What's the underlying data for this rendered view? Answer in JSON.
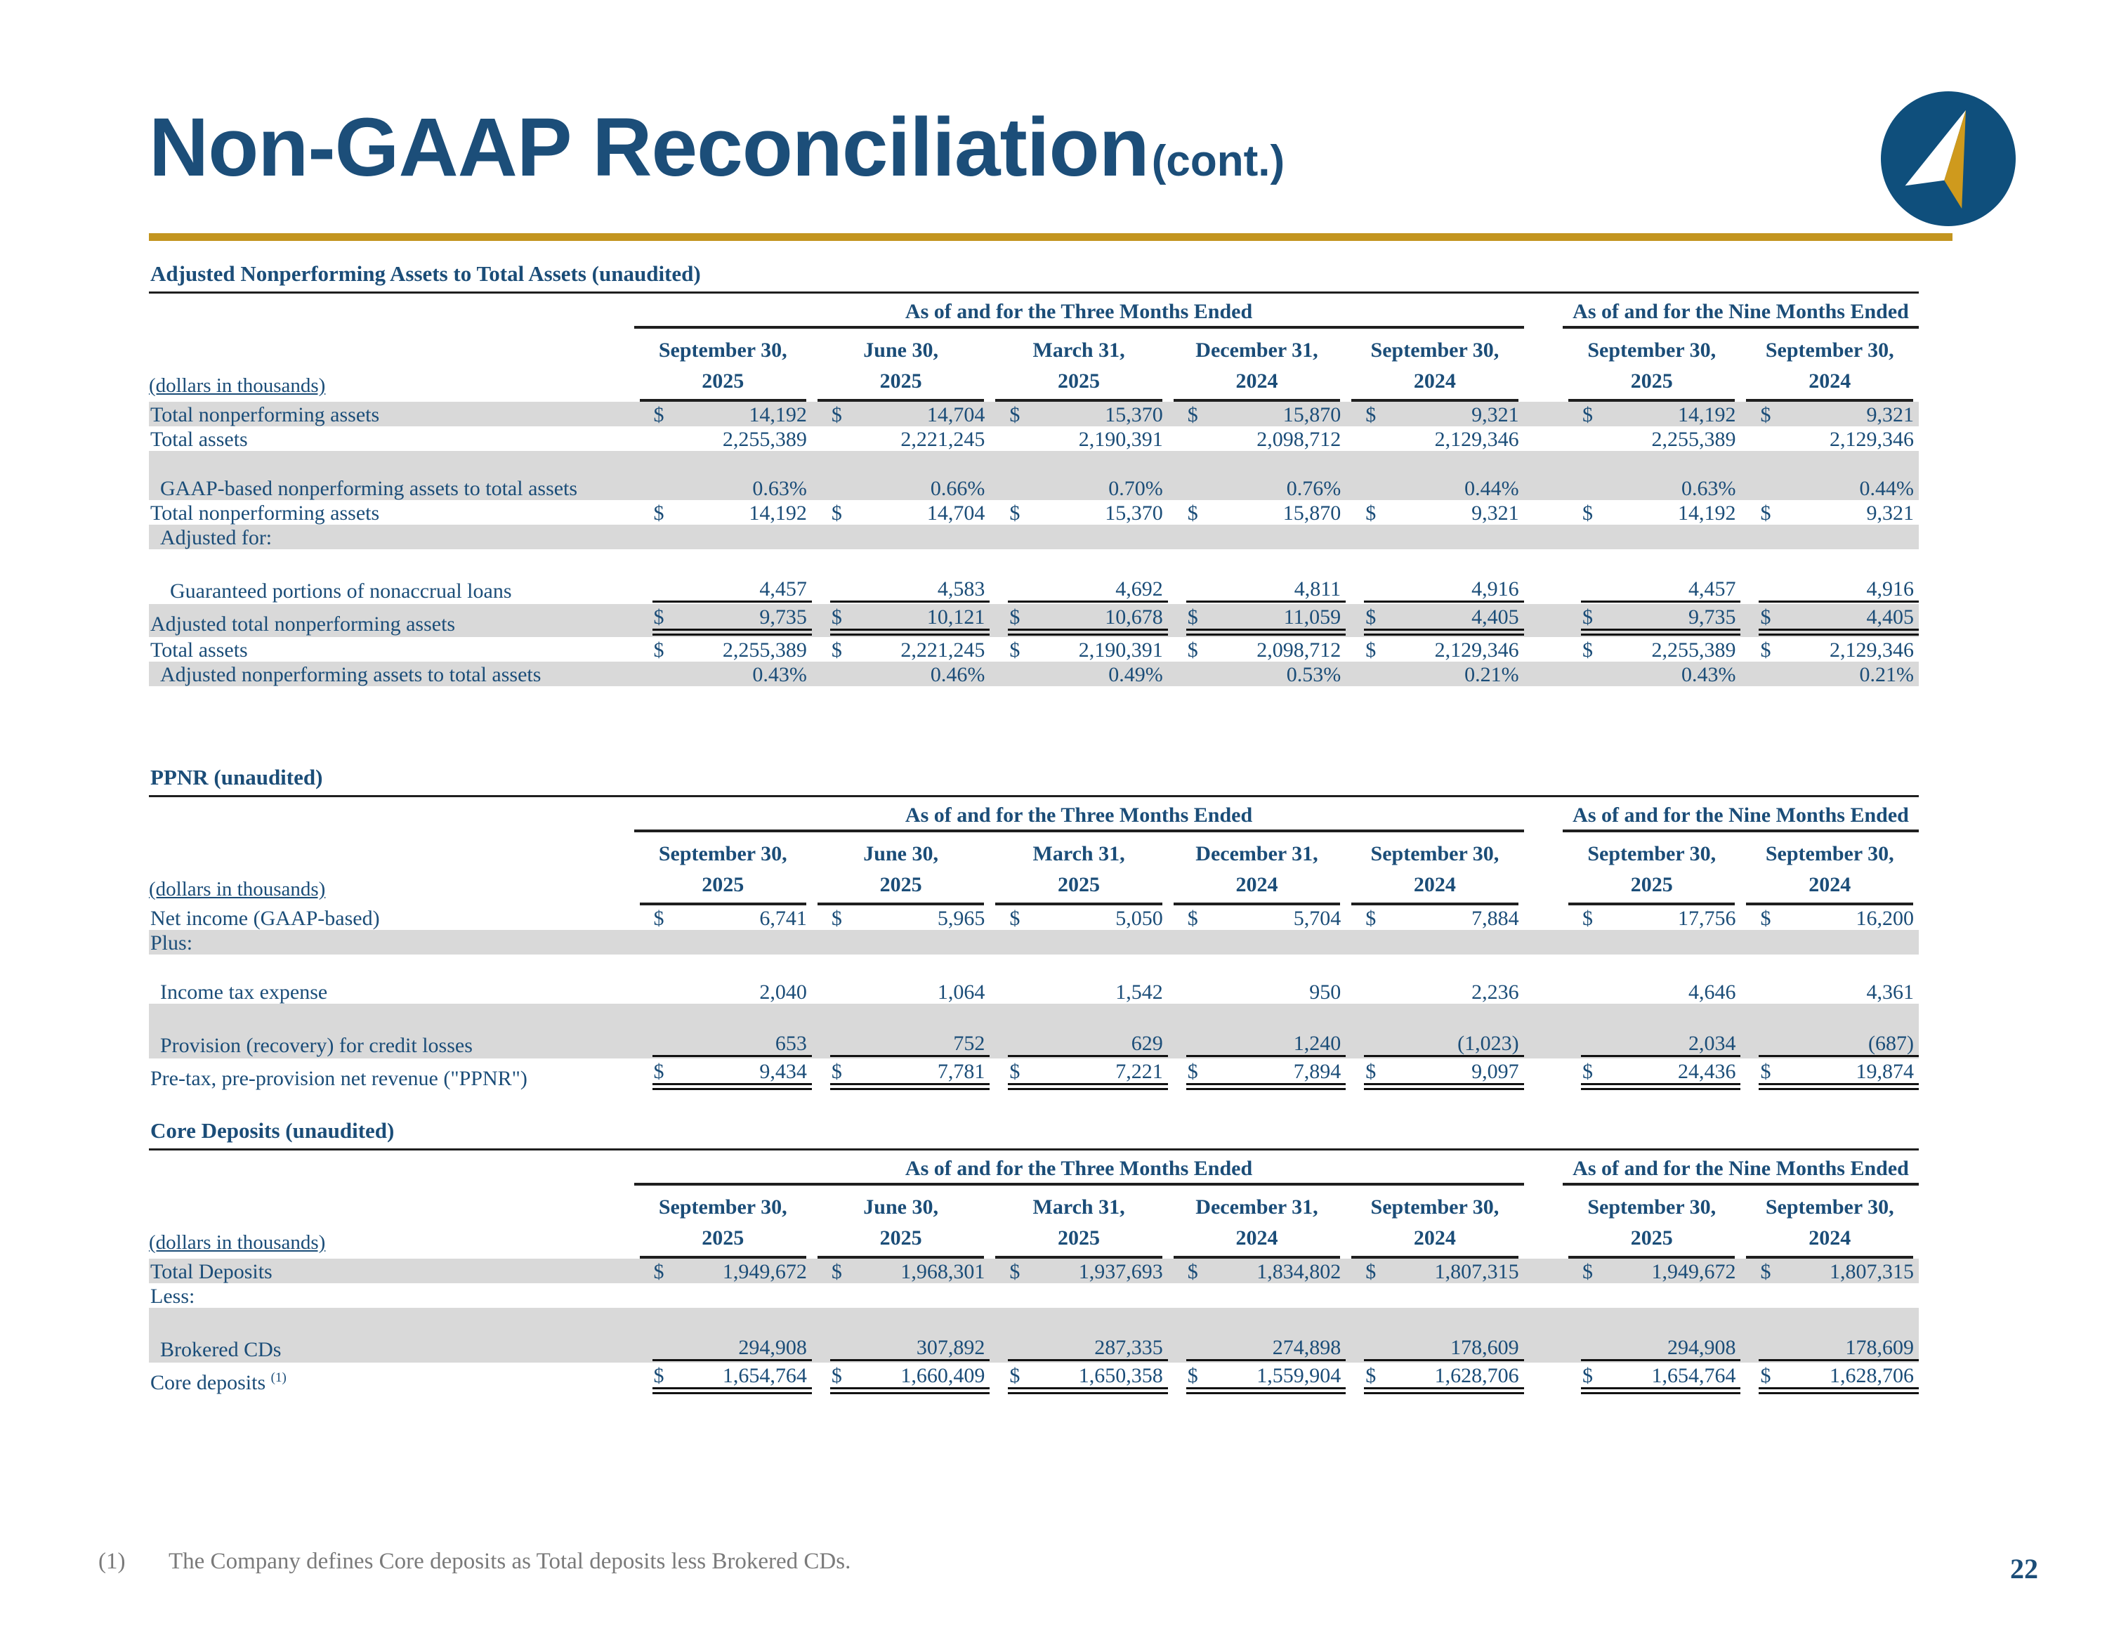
{
  "page": {
    "title": "Non-GAAP Reconciliation",
    "title_suffix": "(cont.)",
    "page_number": "22",
    "footnote_marker": "(1)",
    "footnote_text": "The Company defines Core deposits as Total deposits less Brokered CDs."
  },
  "colors": {
    "text_blue": "#1b4d78",
    "title_blue": "#1c4e79",
    "gold": "#c3951f",
    "shade_gray": "#d9d9d9",
    "line_dark": "#1f1f1f",
    "logo_navy": "#0f4f7c",
    "logo_gold": "#cf9a1d",
    "footnote_gray": "#7a7a7a"
  },
  "logo": {
    "icon": "compass-arrow-icon"
  },
  "columns": {
    "three_months_label": "As of and for the Three Months Ended",
    "nine_months_label": "As of and for the Nine Months Ended",
    "dollars_note": "(dollars in thousands)",
    "dates": [
      {
        "line1": "September 30,",
        "line2": "2025"
      },
      {
        "line1": "June 30,",
        "line2": "2025"
      },
      {
        "line1": "March 31,",
        "line2": "2025"
      },
      {
        "line1": "December 31,",
        "line2": "2024"
      },
      {
        "line1": "September 30,",
        "line2": "2024"
      },
      {
        "line1": "September 30,",
        "line2": "2025"
      },
      {
        "line1": "September 30,",
        "line2": "2024"
      }
    ]
  },
  "tables": [
    {
      "title": "Adjusted Nonperforming Assets to Total Assets (unaudited)",
      "rows": [
        {
          "label": "Total nonperforming assets",
          "indent": 0,
          "shaded": true,
          "dollar": true,
          "underline": "none",
          "values": [
            "14,192",
            "14,704",
            "15,370",
            "15,870",
            "9,321",
            "14,192",
            "9,321"
          ]
        },
        {
          "label": "Total assets",
          "indent": 0,
          "shaded": false,
          "dollar": false,
          "underline": "none",
          "values": [
            "2,255,389",
            "2,221,245",
            "2,190,391",
            "2,098,712",
            "2,129,346",
            "2,255,389",
            "2,129,346"
          ]
        },
        {
          "spacer": true,
          "shaded": true
        },
        {
          "label": "GAAP-based nonperforming assets to total assets",
          "indent": 1,
          "shaded": true,
          "dollar": false,
          "underline": "none",
          "values": [
            "0.63%",
            "0.66%",
            "0.70%",
            "0.76%",
            "0.44%",
            "0.63%",
            "0.44%"
          ]
        },
        {
          "label": "Total nonperforming assets",
          "indent": 0,
          "shaded": false,
          "dollar": true,
          "underline": "none",
          "values": [
            "14,192",
            "14,704",
            "15,370",
            "15,870",
            "9,321",
            "14,192",
            "9,321"
          ]
        },
        {
          "label": "Adjusted for:",
          "indent": 1,
          "shaded": true,
          "dollar": false,
          "underline": "none",
          "values": []
        },
        {
          "spacer": true,
          "shaded": false
        },
        {
          "label": "Guaranteed portions of nonaccrual loans",
          "indent": 2,
          "shaded": false,
          "dollar": false,
          "underline": "single",
          "values": [
            "4,457",
            "4,583",
            "4,692",
            "4,811",
            "4,916",
            "4,457",
            "4,916"
          ]
        },
        {
          "label": "Adjusted total nonperforming assets",
          "indent": 0,
          "shaded": true,
          "dollar": true,
          "underline": "double",
          "values": [
            "9,735",
            "10,121",
            "10,678",
            "11,059",
            "4,405",
            "9,735",
            "4,405"
          ]
        },
        {
          "label": "Total assets",
          "indent": 0,
          "shaded": false,
          "dollar": true,
          "underline": "none",
          "values": [
            "2,255,389",
            "2,221,245",
            "2,190,391",
            "2,098,712",
            "2,129,346",
            "2,255,389",
            "2,129,346"
          ]
        },
        {
          "label": "Adjusted nonperforming assets to total assets",
          "indent": 1,
          "shaded": true,
          "dollar": false,
          "underline": "none",
          "values": [
            "0.43%",
            "0.46%",
            "0.49%",
            "0.53%",
            "0.21%",
            "0.43%",
            "0.21%"
          ]
        }
      ]
    },
    {
      "title": "PPNR (unaudited)",
      "rows": [
        {
          "label": "Net income (GAAP-based)",
          "indent": 0,
          "shaded": false,
          "dollar": true,
          "underline": "none",
          "values": [
            "6,741",
            "5,965",
            "5,050",
            "5,704",
            "7,884",
            "17,756",
            "16,200"
          ]
        },
        {
          "label": "Plus:",
          "indent": 0,
          "shaded": true,
          "dollar": false,
          "underline": "none",
          "values": []
        },
        {
          "spacer": true,
          "shaded": false
        },
        {
          "label": "Income tax expense",
          "indent": 1,
          "shaded": false,
          "dollar": false,
          "underline": "none",
          "values": [
            "2,040",
            "1,064",
            "1,542",
            "950",
            "2,236",
            "4,646",
            "4,361"
          ]
        },
        {
          "spacer": true,
          "shaded": true
        },
        {
          "label": "Provision (recovery) for credit losses",
          "indent": 1,
          "shaded": true,
          "dollar": false,
          "underline": "single",
          "values": [
            "653",
            "752",
            "629",
            "1,240",
            "(1,023)",
            "2,034",
            "(687)"
          ]
        },
        {
          "label": "Pre-tax, pre-provision net revenue (\"PPNR\")",
          "indent": 0,
          "shaded": false,
          "dollar": true,
          "underline": "double",
          "values": [
            "9,434",
            "7,781",
            "7,221",
            "7,894",
            "9,097",
            "24,436",
            "19,874"
          ]
        }
      ]
    },
    {
      "title": "Core Deposits (unaudited)",
      "rows": [
        {
          "label": "Total Deposits",
          "indent": 0,
          "shaded": true,
          "dollar": true,
          "underline": "none",
          "values": [
            "1,949,672",
            "1,968,301",
            "1,937,693",
            "1,834,802",
            "1,807,315",
            "1,949,672",
            "1,807,315"
          ]
        },
        {
          "label": "Less:",
          "indent": 0,
          "shaded": false,
          "dollar": false,
          "underline": "none",
          "values": []
        },
        {
          "spacer": true,
          "shaded": true
        },
        {
          "label": "Brokered CDs",
          "indent": 1,
          "shaded": true,
          "dollar": false,
          "underline": "single",
          "values": [
            "294,908",
            "307,892",
            "287,335",
            "274,898",
            "178,609",
            "294,908",
            "178,609"
          ]
        },
        {
          "label": "Core deposits",
          "sup": "(1)",
          "indent": 0,
          "shaded": false,
          "dollar": true,
          "underline": "double",
          "values": [
            "1,654,764",
            "1,660,409",
            "1,650,358",
            "1,559,904",
            "1,628,706",
            "1,654,764",
            "1,628,706"
          ]
        }
      ]
    }
  ]
}
